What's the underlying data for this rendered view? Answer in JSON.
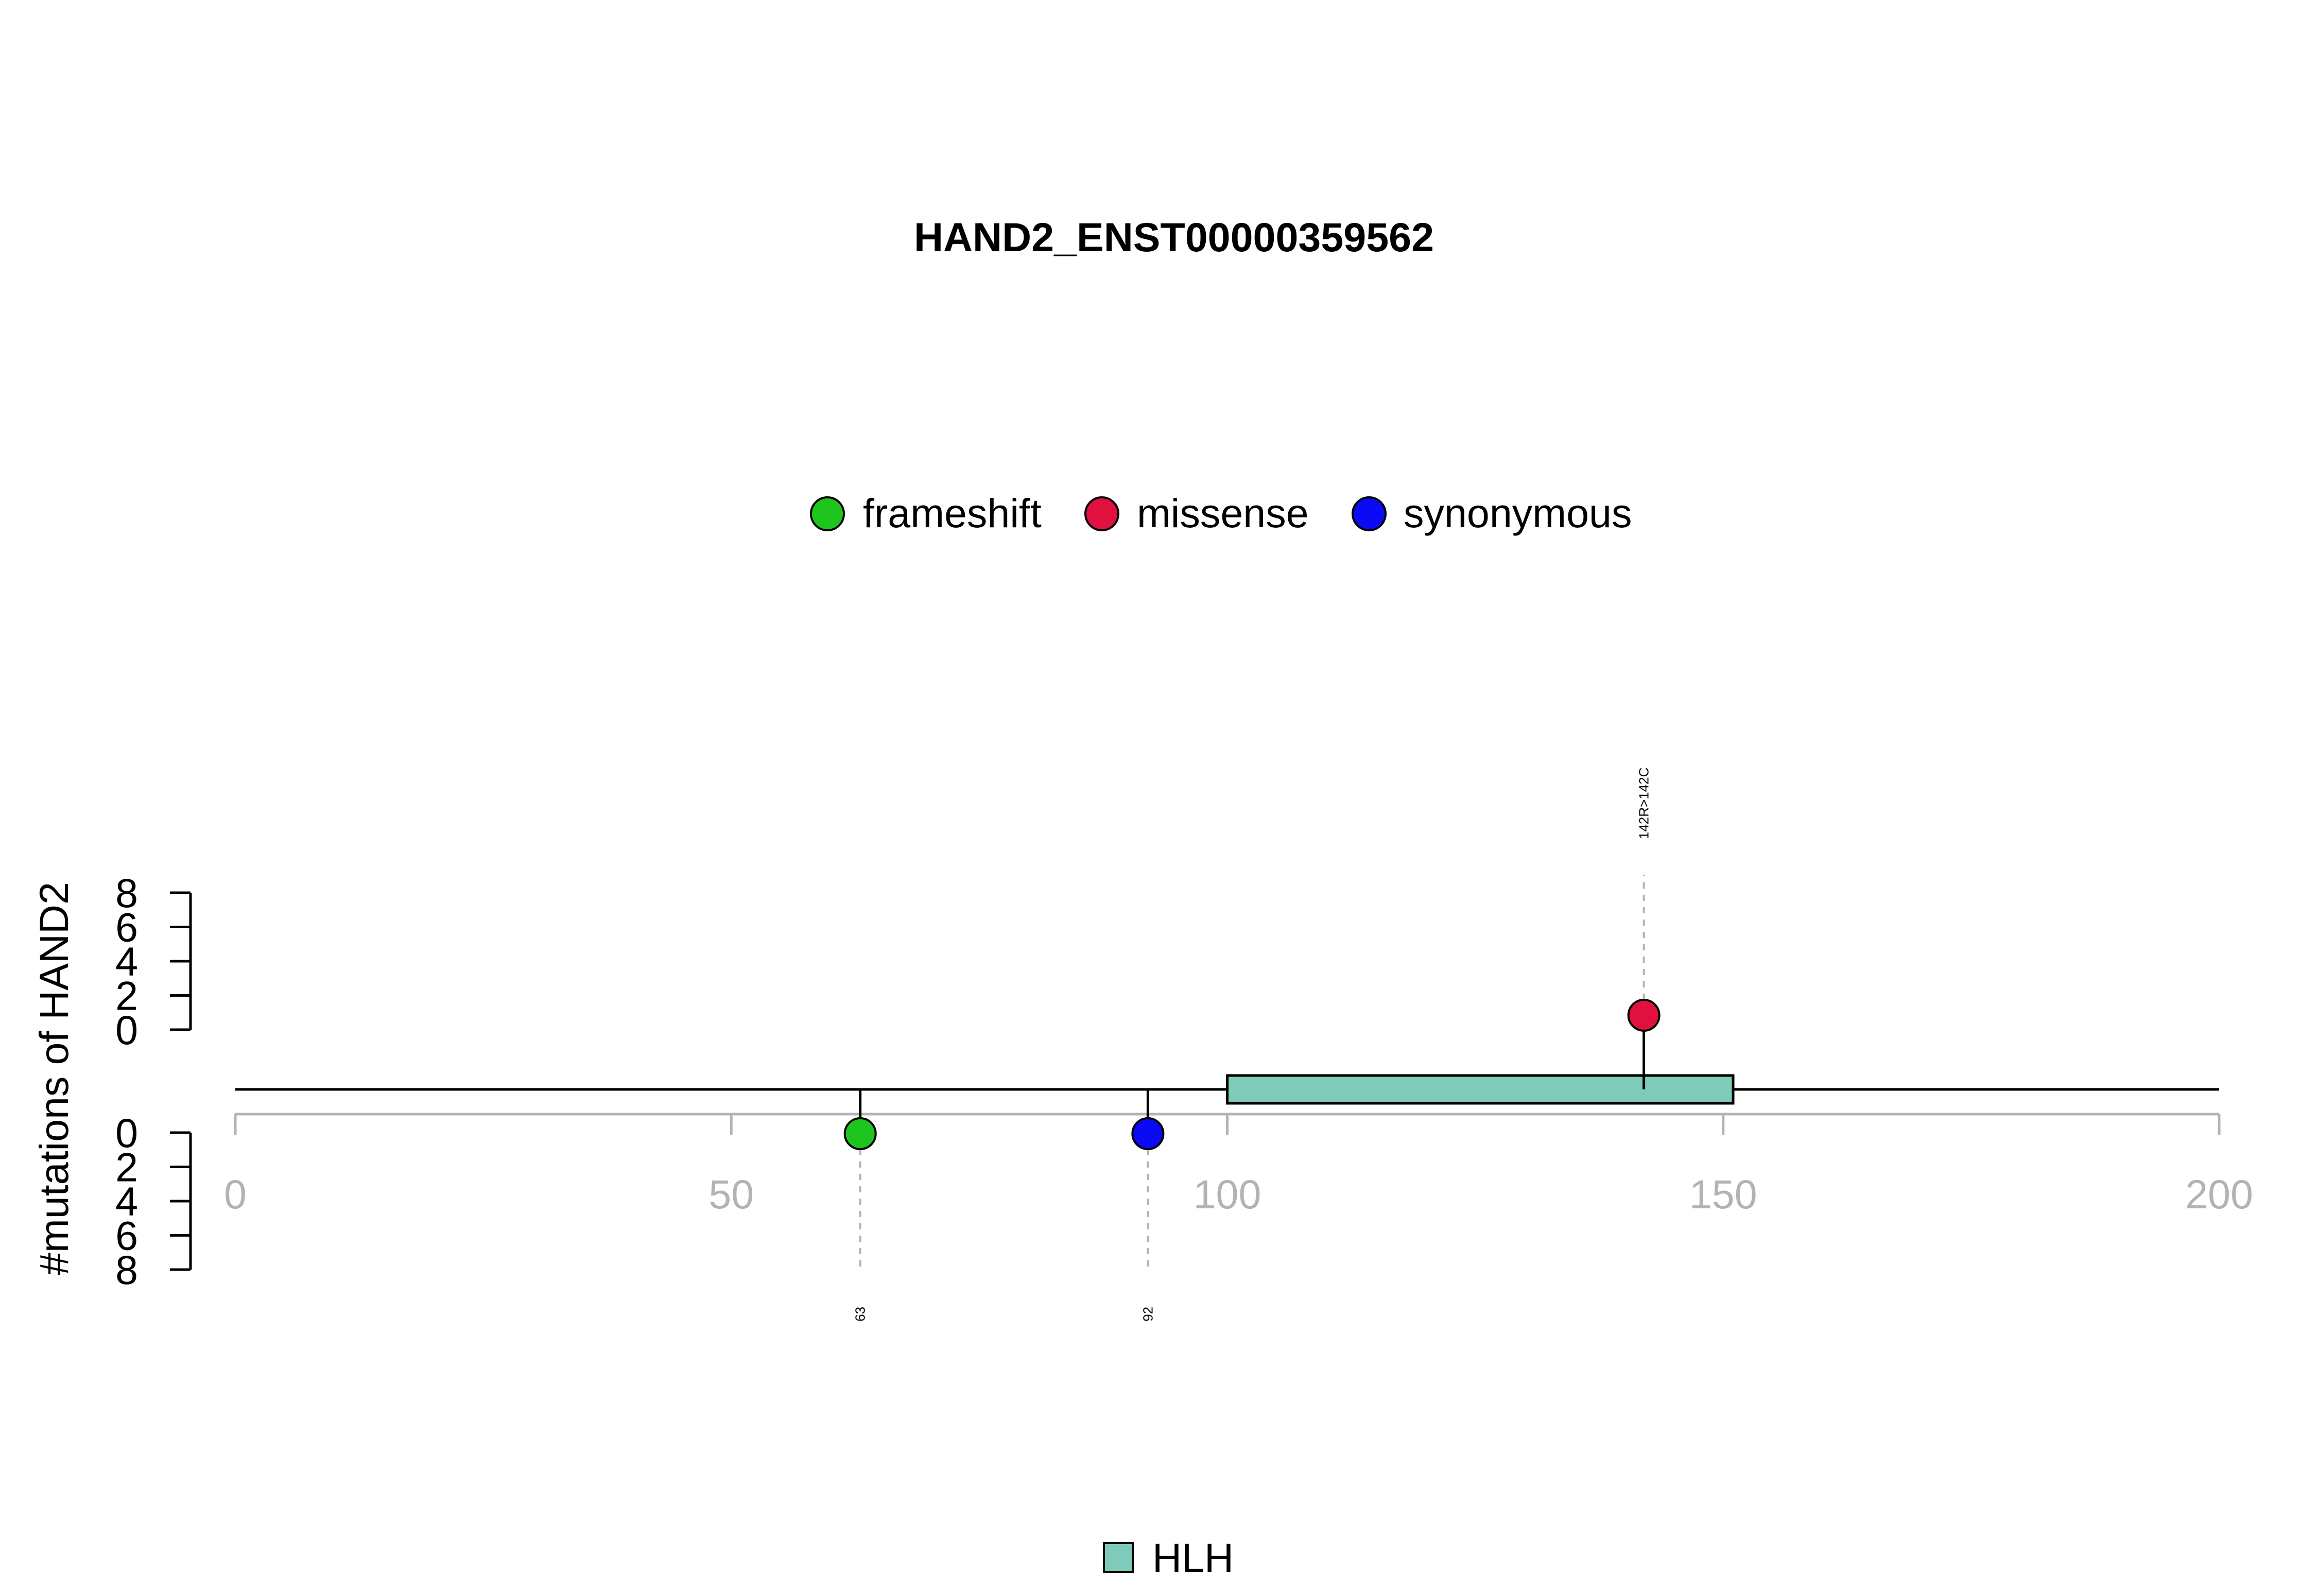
{
  "chart_data": {
    "type": "lollipop",
    "title": "HAND2_ENST00000359562",
    "ylabel": "#mutations of HAND2",
    "xlim": [
      0,
      200
    ],
    "x_ticks": [
      0,
      50,
      100,
      150,
      200
    ],
    "y_ticks": [
      0,
      2,
      4,
      6,
      8
    ],
    "colors": {
      "frameshift": "#1EC51E",
      "missense": "#E0103F",
      "synonymous": "#0A0AF5",
      "HLH": "#7ECBB9",
      "axis_gray": "#B3B3B3",
      "guide_gray": "#B3B3B3"
    },
    "legend_types": [
      "frameshift",
      "missense",
      "synonymous"
    ],
    "mutations": [
      {
        "position": 63,
        "label": "63",
        "type": "frameshift",
        "count": 1,
        "side": "bottom"
      },
      {
        "position": 92,
        "label": "92",
        "type": "synonymous",
        "count": 1,
        "side": "bottom"
      },
      {
        "position": 142,
        "label": "142R>142C",
        "type": "missense",
        "count": 1,
        "side": "top"
      }
    ],
    "domains": [
      {
        "name": "HLH",
        "start": 100,
        "end": 151
      }
    ],
    "domain_legend": [
      "HLH"
    ]
  }
}
